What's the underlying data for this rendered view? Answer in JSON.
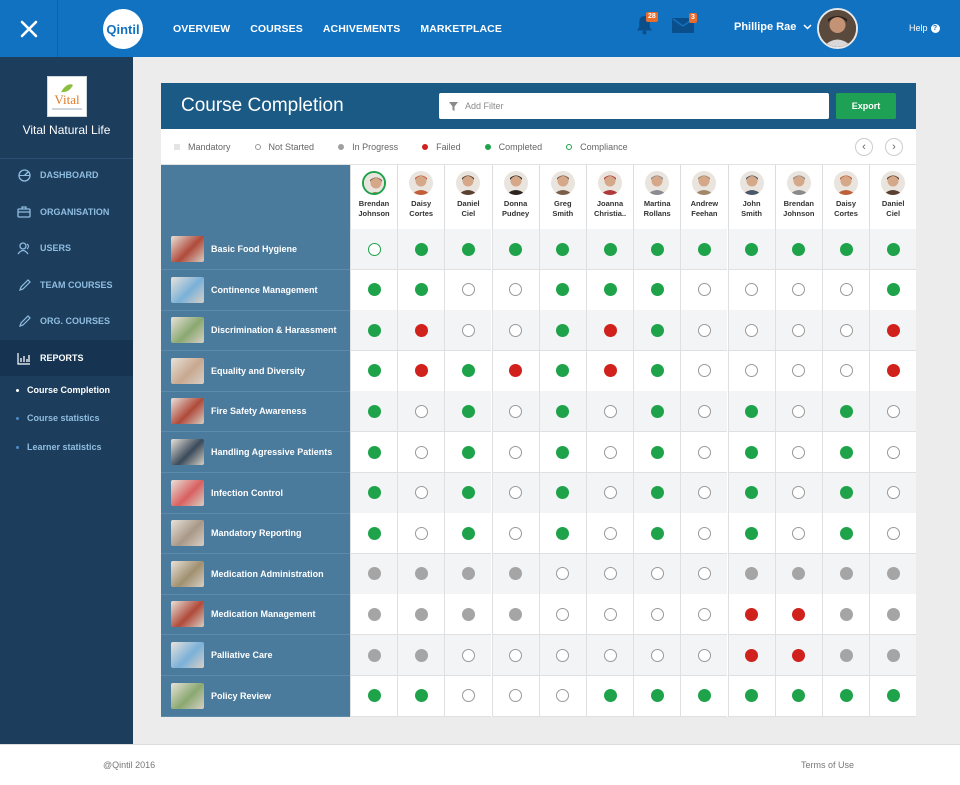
{
  "app": {
    "logo_text": "Qintil",
    "nav": [
      "OVERVIEW",
      "COURSES",
      "ACHIVEMENTS",
      "MARKETPLACE"
    ],
    "notifications_count": "28",
    "messages_count": "3",
    "user_name": "Phillipe Rae",
    "help_label": "Help"
  },
  "sidebar": {
    "org_logo_text": "Vital",
    "org_name": "Vital Natural Life",
    "items": [
      {
        "label": "DASHBOARD",
        "icon": "dashboard-icon"
      },
      {
        "label": "ORGANISATION",
        "icon": "briefcase-icon"
      },
      {
        "label": "USERS",
        "icon": "users-icon"
      },
      {
        "label": "TEAM COURSES",
        "icon": "pencil-icon"
      },
      {
        "label": "ORG. COURSES",
        "icon": "pencil-icon"
      },
      {
        "label": "REPORTS",
        "icon": "bar-chart-icon"
      }
    ],
    "subitems": [
      "Course Completion",
      "Course statistics",
      "Learner statistics"
    ]
  },
  "card": {
    "title": "Course Completion",
    "filter_placeholder": "Add Filter",
    "export_label": "Export"
  },
  "legend": [
    "Mandatory",
    "Not Started",
    "In Progress",
    "Failed",
    "Completed",
    "Compliance"
  ],
  "learners": [
    {
      "first": "Brendan",
      "last": "Johnson",
      "tone": "#8a6a52"
    },
    {
      "first": "Daisy",
      "last": "Cortes",
      "tone": "#c0603a"
    },
    {
      "first": "Daniel",
      "last": "Ciel",
      "tone": "#5a4030"
    },
    {
      "first": "Donna",
      "last": "Pudney",
      "tone": "#2d2420"
    },
    {
      "first": "Greg",
      "last": "Smith",
      "tone": "#7a6048"
    },
    {
      "first": "Joanna",
      "last": "Christia..",
      "tone": "#b03a3a"
    },
    {
      "first": "Martina",
      "last": "Rollans",
      "tone": "#8a8a90"
    },
    {
      "first": "Andrew",
      "last": "Feehan",
      "tone": "#a08868"
    },
    {
      "first": "John",
      "last": "Smith",
      "tone": "#4a5868"
    },
    {
      "first": "Brendan",
      "last": "Johnson",
      "tone": "#8a8a8a"
    },
    {
      "first": "Daisy",
      "last": "Cortes",
      "tone": "#c0603a"
    },
    {
      "first": "Daniel",
      "last": "Ciel",
      "tone": "#5a4030"
    }
  ],
  "courses": [
    {
      "name": "Basic Food Hygiene",
      "thumb": "#b04a3a",
      "status": [
        "cm",
        "cp",
        "cp",
        "cp",
        "cp",
        "cp",
        "cp",
        "cp",
        "cp",
        "cp",
        "cp",
        "cp"
      ]
    },
    {
      "name": "Continence Management",
      "thumb": "#7ab0d8",
      "status": [
        "cp",
        "cp",
        "ns",
        "ns",
        "cp",
        "cp",
        "cp",
        "ns",
        "ns",
        "ns",
        "ns",
        "cp"
      ]
    },
    {
      "name": "Discrimination & Harassment",
      "thumb": "#8aa870",
      "status": [
        "cp",
        "fl",
        "ns",
        "ns",
        "cp",
        "fl",
        "cp",
        "ns",
        "ns",
        "ns",
        "ns",
        "fl"
      ]
    },
    {
      "name": "Equality and Diversity",
      "thumb": "#c8a890",
      "status": [
        "cp",
        "fl",
        "cp",
        "fl",
        "cp",
        "fl",
        "cp",
        "ns",
        "ns",
        "ns",
        "ns",
        "fl"
      ]
    },
    {
      "name": "Fire Safety Awareness",
      "thumb": "#b04a3a",
      "status": [
        "cp",
        "ns",
        "cp",
        "ns",
        "cp",
        "ns",
        "cp",
        "ns",
        "cp",
        "ns",
        "cp",
        "ns"
      ]
    },
    {
      "name": "Handling Agressive Patients",
      "thumb": "#3a4a5a",
      "status": [
        "cp",
        "ns",
        "cp",
        "ns",
        "cp",
        "ns",
        "cp",
        "ns",
        "cp",
        "ns",
        "cp",
        "ns"
      ]
    },
    {
      "name": "Infection Control",
      "thumb": "#d86060",
      "status": [
        "cp",
        "ns",
        "cp",
        "ns",
        "cp",
        "ns",
        "cp",
        "ns",
        "cp",
        "ns",
        "cp",
        "ns"
      ]
    },
    {
      "name": "Mandatory Reporting",
      "thumb": "#a89888",
      "status": [
        "cp",
        "ns",
        "cp",
        "ns",
        "cp",
        "ns",
        "cp",
        "ns",
        "cp",
        "ns",
        "cp",
        "ns"
      ]
    },
    {
      "name": "Medication Administration",
      "thumb": "#a09070",
      "status": [
        "ip",
        "ip",
        "ip",
        "ip",
        "ns",
        "ns",
        "ns",
        "ns",
        "ip",
        "ip",
        "ip",
        "ip"
      ]
    },
    {
      "name": "Medication Management",
      "thumb": "#b04a3a",
      "status": [
        "ip",
        "ip",
        "ip",
        "ip",
        "ns",
        "ns",
        "ns",
        "ns",
        "fl",
        "fl",
        "ip",
        "ip"
      ]
    },
    {
      "name": "Palliative Care",
      "thumb": "#7ab0d8",
      "status": [
        "ip",
        "ip",
        "ns",
        "ns",
        "ns",
        "ns",
        "ns",
        "ns",
        "fl",
        "fl",
        "ip",
        "ip"
      ]
    },
    {
      "name": "Policy Review",
      "thumb": "#8aa870",
      "status": [
        "cp",
        "cp",
        "ns",
        "ns",
        "ns",
        "cp",
        "cp",
        "cp",
        "cp",
        "cp",
        "cp",
        "cp"
      ]
    }
  ],
  "footer": {
    "copyright": "@Qintil 2016",
    "terms": "Terms of Use"
  }
}
